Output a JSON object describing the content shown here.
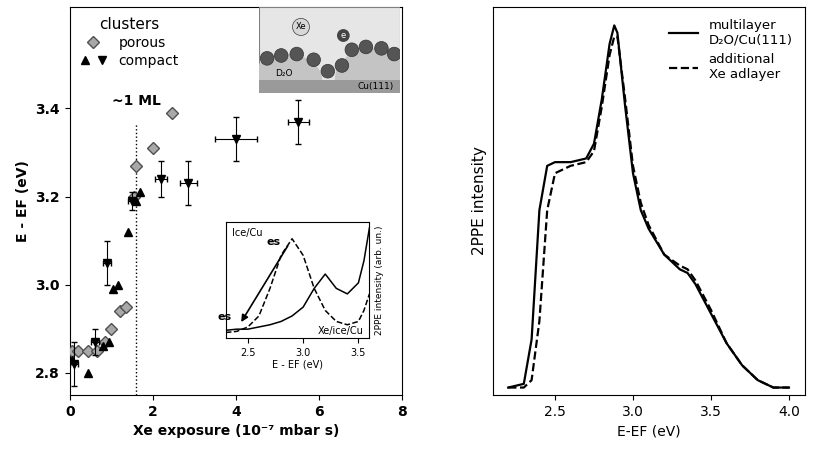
{
  "chart_data": [
    {
      "type": "scatter",
      "x_label": "Xe exposure (10⁻⁷ mbar s)",
      "y_label": "E - EF (eV)",
      "xlim": [
        0,
        8
      ],
      "xticks": [
        0,
        2,
        4,
        6,
        8
      ],
      "ylim": [
        2.75,
        3.63
      ],
      "yticks": [
        2.8,
        3.0,
        3.2,
        3.4
      ],
      "legend": "upper left",
      "legend_title": "clusters",
      "reference_line": {
        "x": 1.6,
        "label": "~1 ML"
      },
      "series": [
        {
          "name": "porous",
          "color": "#a8a8a8",
          "marker": "diamond",
          "x": [
            0.05,
            0.2,
            0.45,
            0.65,
            0.85,
            1.0,
            1.2,
            1.35,
            1.55,
            1.6,
            2.0,
            2.45
          ],
          "values": [
            2.85,
            2.85,
            2.85,
            2.85,
            2.87,
            2.9,
            2.94,
            2.95,
            3.2,
            3.27,
            3.31,
            3.39
          ]
        },
        {
          "name": "compact",
          "color": "#000000",
          "marker": "triangle_up",
          "x": [
            0.05,
            0.45,
            0.8,
            0.95,
            1.05,
            1.15,
            1.4,
            1.6,
            1.7
          ],
          "values": [
            2.83,
            2.8,
            2.86,
            2.87,
            2.99,
            3.0,
            3.12,
            3.19,
            3.21
          ]
        },
        {
          "name": "compact",
          "color": "#000000",
          "marker": "triangle_down",
          "x": [
            0.1,
            0.6,
            0.9,
            1.5,
            2.2,
            2.85,
            4.0,
            5.5
          ],
          "values": [
            2.82,
            2.87,
            3.05,
            3.19,
            3.24,
            3.23,
            3.33,
            3.37
          ],
          "xerr": [
            0.1,
            0.1,
            0.1,
            0.1,
            0.15,
            0.2,
            0.5,
            0.25
          ],
          "yerr": [
            0.05,
            0.03,
            0.05,
            0.02,
            0.04,
            0.05,
            0.05,
            0.05
          ]
        }
      ]
    },
    {
      "type": "line",
      "x_label": "E - EF (eV)",
      "y_label": "2PPE intensity (arb. un.)",
      "xlim": [
        2.3,
        3.6
      ],
      "xticks": [
        2.5,
        3.0,
        3.5
      ],
      "ylim": [
        0,
        1.05
      ],
      "tick_labels": "x",
      "peak_label": "es",
      "x": [
        2.3,
        2.4,
        2.5,
        2.6,
        2.7,
        2.8,
        2.9,
        3.0,
        3.1,
        3.2,
        3.3,
        3.4,
        3.5,
        3.55,
        3.6
      ],
      "series": [
        {
          "name": "Ice/Cu",
          "color": "#000000",
          "line_style": "dashed",
          "values": [
            0.05,
            0.06,
            0.1,
            0.2,
            0.45,
            0.75,
            0.9,
            0.75,
            0.45,
            0.25,
            0.15,
            0.12,
            0.15,
            0.25,
            0.4
          ]
        },
        {
          "name": "Xe/ice/Cu",
          "color": "#000000",
          "line_style": "solid",
          "values": [
            0.07,
            0.08,
            0.08,
            0.1,
            0.12,
            0.15,
            0.2,
            0.28,
            0.45,
            0.58,
            0.45,
            0.4,
            0.5,
            0.7,
            1.0
          ]
        }
      ]
    },
    {
      "type": "line",
      "x_label": "E-EF (eV)",
      "y_label": "2PPE intensity",
      "xlim": [
        2.1,
        4.1
      ],
      "xticks": [
        2.5,
        3.0,
        3.5,
        4.0
      ],
      "ylim": [
        0,
        1.05
      ],
      "tick_labels": "x",
      "legend": "upper right",
      "x": [
        2.2,
        2.3,
        2.35,
        2.4,
        2.45,
        2.5,
        2.6,
        2.7,
        2.75,
        2.8,
        2.85,
        2.88,
        2.9,
        2.95,
        3.0,
        3.05,
        3.1,
        3.2,
        3.3,
        3.35,
        3.4,
        3.5,
        3.6,
        3.7,
        3.8,
        3.9,
        4.0
      ],
      "series": [
        {
          "name": "multilayer\nD₂O/Cu(111)",
          "color": "#000000",
          "line_style": "solid",
          "values": [
            0.02,
            0.03,
            0.15,
            0.5,
            0.62,
            0.63,
            0.63,
            0.64,
            0.68,
            0.8,
            0.95,
            1.0,
            0.98,
            0.78,
            0.6,
            0.5,
            0.45,
            0.38,
            0.34,
            0.33,
            0.3,
            0.22,
            0.14,
            0.08,
            0.04,
            0.02,
            0.02
          ]
        },
        {
          "name": "additional\nXe adlayer",
          "color": "#000000",
          "line_style": "dashed",
          "values": [
            0.02,
            0.02,
            0.04,
            0.2,
            0.5,
            0.6,
            0.62,
            0.63,
            0.66,
            0.78,
            0.92,
            0.97,
            0.97,
            0.8,
            0.62,
            0.52,
            0.46,
            0.38,
            0.35,
            0.34,
            0.31,
            0.23,
            0.14,
            0.08,
            0.04,
            0.02,
            0.02
          ]
        }
      ]
    }
  ],
  "schematic": {
    "xe": "Xe",
    "electron": "e",
    "ice": "D₂O",
    "substrate": "Cu(111)"
  }
}
